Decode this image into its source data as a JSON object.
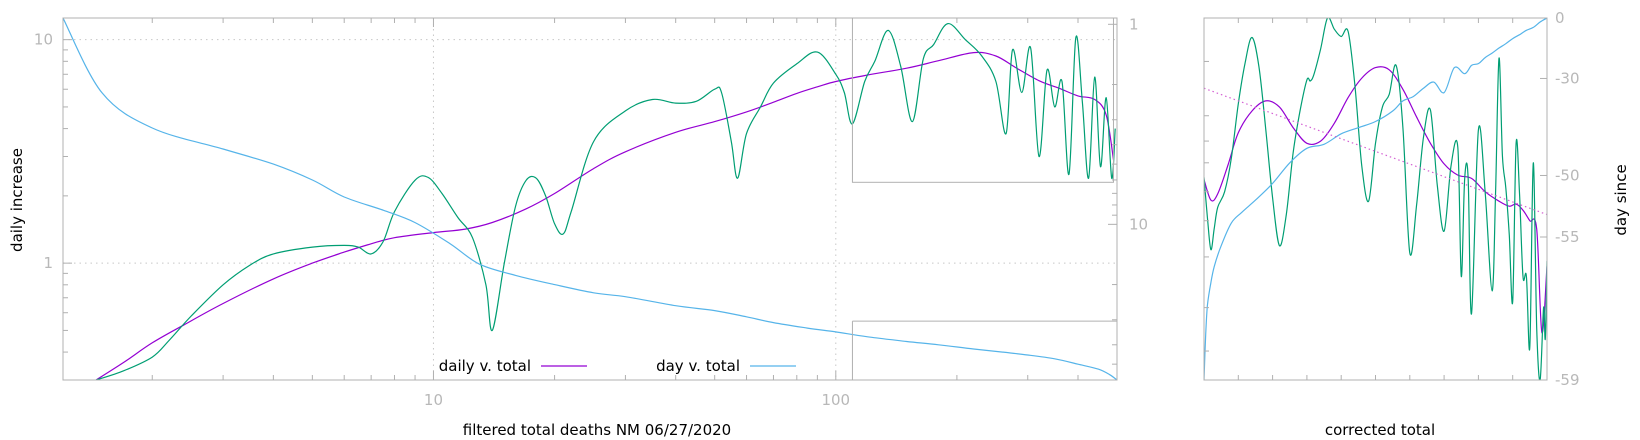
{
  "chart_data": [
    {
      "type": "line",
      "xlabel": "filtered total deaths NM 06/27/2020",
      "ylabel": "daily increase",
      "y2label": "day since",
      "x_scale": "log",
      "y_scale": "log",
      "xlim": [
        1.2,
        500
      ],
      "ylim": [
        0.3,
        12.5
      ],
      "y2lim": [
        60,
        0.93
      ],
      "x_tick_labels": [
        {
          "value": 10,
          "label": "10"
        },
        {
          "value": 100,
          "label": "100"
        }
      ],
      "y_tick_labels": [
        {
          "value": 1,
          "label": "1"
        },
        {
          "value": 10,
          "label": "10"
        }
      ],
      "y2_tick_labels": [
        {
          "value": 1,
          "label": "1"
        },
        {
          "value": 10,
          "label": "10"
        }
      ],
      "grid": true,
      "legend": {
        "placement": "bottom-center",
        "entries": [
          "daily v. total",
          "day v. total"
        ]
      },
      "series": [
        {
          "name": "daily v. total",
          "color": "#9400d3",
          "axis": "y",
          "x": [
            1.45,
            1.7,
            2.0,
            2.4,
            3.0,
            4.0,
            5.0,
            6.0,
            7.0,
            8.0,
            10.0,
            12.0,
            14.0,
            17.0,
            20.0,
            25.0,
            30.0,
            40.0,
            50.0,
            60.0,
            70.0,
            80.0,
            90.0,
            100.0,
            120.0,
            150.0,
            180.0,
            220.0,
            250.0,
            280.0,
            320.0,
            360.0,
            400.0,
            440.0,
            470.0,
            490.0
          ],
          "y": [
            0.3,
            0.36,
            0.44,
            0.53,
            0.66,
            0.85,
            1.0,
            1.12,
            1.22,
            1.3,
            1.37,
            1.42,
            1.52,
            1.75,
            2.05,
            2.65,
            3.15,
            3.85,
            4.3,
            4.75,
            5.25,
            5.75,
            6.15,
            6.5,
            6.95,
            7.45,
            8.05,
            8.75,
            8.45,
            7.5,
            6.55,
            6.05,
            5.6,
            5.4,
            4.6,
            2.9
          ]
        },
        {
          "name": "",
          "color": "#009e73",
          "axis": "y",
          "x": [
            1.45,
            1.7,
            2.0,
            2.2,
            2.5,
            3.0,
            3.5,
            4.0,
            5.0,
            6.0,
            6.5,
            7.0,
            7.5,
            8.0,
            9.0,
            9.7,
            10.5,
            11.5,
            12.5,
            13.5,
            14.0,
            15.0,
            16.0,
            17.0,
            18.0,
            19.0,
            20.0,
            21.0,
            22.0,
            25.0,
            30.0,
            35.0,
            40.0,
            45.0,
            50.0,
            52.0,
            55.0,
            57.0,
            60.0,
            65.0,
            70.0,
            80.0,
            90.0,
            100.0,
            105.0,
            110.0,
            118.0,
            125.0,
            135.0,
            145.0,
            155.0,
            165.0,
            175.0,
            190.0,
            210.0,
            230.0,
            250.0,
            265.0,
            275.0,
            290.0,
            305.0,
            320.0,
            335.0,
            350.0,
            365.0,
            380.0,
            395.0,
            410.0,
            425.0,
            440.0,
            455.0,
            470.0,
            485.0,
            495.0
          ],
          "y": [
            0.3,
            0.33,
            0.38,
            0.45,
            0.58,
            0.8,
            0.98,
            1.1,
            1.18,
            1.2,
            1.18,
            1.1,
            1.25,
            1.7,
            2.35,
            2.42,
            2.05,
            1.6,
            1.3,
            0.8,
            0.5,
            1.0,
            1.8,
            2.35,
            2.4,
            2.0,
            1.5,
            1.35,
            1.7,
            3.5,
            4.8,
            5.4,
            5.2,
            5.3,
            6.0,
            5.8,
            3.5,
            2.4,
            3.8,
            5.0,
            6.4,
            7.8,
            8.8,
            7.0,
            5.8,
            4.2,
            6.5,
            8.0,
            11.0,
            7.6,
            4.3,
            8.2,
            9.5,
            11.8,
            10.0,
            8.5,
            6.5,
            3.8,
            9.0,
            5.8,
            9.2,
            3.0,
            7.3,
            5.0,
            6.5,
            2.5,
            10.2,
            5.3,
            2.4,
            6.8,
            2.7,
            5.5,
            2.4,
            4.0
          ]
        },
        {
          "name": "day v. total",
          "color": "#56b4e9",
          "axis": "y2",
          "x": [
            1.2,
            1.5,
            2.0,
            3.0,
            4.0,
            5.0,
            6.0,
            7.5,
            9.0,
            11.0,
            13.0,
            16.0,
            20.0,
            25.0,
            30.0,
            40.0,
            50.0,
            60.0,
            70.0,
            85.0,
            100.0,
            120.0,
            150.0,
            180.0,
            220.0,
            260.0,
            300.0,
            350.0,
            400.0,
            450.0,
            480.0,
            500.0
          ],
          "y": [
            0.93,
            2.2,
            3.3,
            4.2,
            5.0,
            6.0,
            7.3,
            8.5,
            9.8,
            12.5,
            15.8,
            18.0,
            20.0,
            22.0,
            23.0,
            25.5,
            27.0,
            29.0,
            31.0,
            33.0,
            34.5,
            36.5,
            38.5,
            40.0,
            42.0,
            43.5,
            45.0,
            47.0,
            50.0,
            53.0,
            56.5,
            60.0
          ]
        }
      ],
      "inset_box": {
        "x": [
          110,
          490
        ],
        "y": [
          2.3,
          12.5
        ]
      },
      "horizontal_rule": {
        "y": 0.55,
        "x": [
          110,
          500
        ]
      }
    },
    {
      "type": "line",
      "xlabel": "corrected total",
      "ylabel": "",
      "y2label": "day since",
      "xlim": [
        0,
        100
      ],
      "ylim": [
        0,
        100
      ],
      "y2lim": [
        -59,
        0
      ],
      "y2_tick_labels": [
        {
          "value": 0,
          "label": "0"
        },
        {
          "value": -30,
          "label": "-30"
        },
        {
          "value": -50,
          "label": "-50"
        },
        {
          "value": -55,
          "label": "-55"
        },
        {
          "value": -59,
          "label": "-59"
        }
      ],
      "series": [
        {
          "name": "",
          "color": "#9400d3",
          "x": [
            0,
            2,
            4,
            7,
            10,
            14,
            18,
            22,
            26,
            30,
            34,
            38,
            42,
            46,
            50,
            54,
            58,
            62,
            66,
            70,
            74,
            78,
            82,
            86,
            89,
            91,
            93,
            95,
            97,
            98.5,
            100
          ],
          "y": [
            44.6,
            50.3,
            48.6,
            40.6,
            31.7,
            25.7,
            22.9,
            24.6,
            30.3,
            34.6,
            34.0,
            29.1,
            22.0,
            16.6,
            13.7,
            14.3,
            19.7,
            27.4,
            34.6,
            40.3,
            43.4,
            44.3,
            48.0,
            50.6,
            52.0,
            51.4,
            53.1,
            56.0,
            58.3,
            86.9,
            68.6
          ]
        },
        {
          "name": "",
          "color": "#009e73",
          "x": [
            0,
            1,
            2,
            3,
            4,
            6,
            8,
            10,
            12,
            14,
            16,
            18,
            20,
            22,
            24,
            26,
            28,
            30,
            31,
            32,
            34,
            36,
            38,
            40,
            42,
            44,
            46,
            48,
            50,
            52,
            54,
            56,
            58,
            60,
            62,
            64,
            66,
            68,
            70,
            72,
            74,
            75,
            76,
            77,
            78,
            80,
            82,
            84,
            85,
            86,
            87,
            88,
            89,
            90,
            91,
            92,
            93,
            94,
            95,
            96,
            97,
            98,
            99,
            99.5,
            100
          ],
          "y": [
            44.0,
            55.1,
            64.0,
            58.0,
            52.3,
            48.0,
            38.6,
            23.7,
            12.3,
            5.4,
            13.4,
            30.6,
            49.7,
            62.9,
            54.3,
            37.1,
            25.7,
            17.1,
            17.4,
            15.7,
            8.6,
            0.0,
            3.1,
            5.1,
            3.7,
            18.6,
            40.9,
            50.6,
            34.6,
            24.6,
            21.1,
            13.1,
            30.3,
            64.9,
            51.4,
            32.9,
            25.4,
            46.0,
            58.9,
            40.9,
            35.7,
            71.4,
            44.3,
            44.0,
            81.7,
            30.9,
            48.6,
            75.4,
            48.9,
            11.1,
            38.0,
            46.9,
            60.0,
            78.3,
            34.6,
            48.9,
            71.4,
            71.4,
            90.9,
            40.0,
            85.7,
            100.0,
            80.0,
            88.6,
            67.1
          ]
        },
        {
          "name": "",
          "color": "#56b4e9",
          "x": [
            0,
            0.5,
            1,
            2,
            3,
            5,
            8,
            11,
            15,
            20,
            25,
            30,
            35,
            40,
            45,
            50,
            55,
            58,
            61,
            64,
            67,
            70,
            73,
            76,
            78,
            80,
            82,
            84,
            86,
            88,
            90,
            92,
            94,
            96,
            98,
            100
          ],
          "y": [
            100.0,
            87.4,
            79.4,
            73.1,
            68.6,
            62.9,
            56.6,
            53.7,
            50.3,
            45.7,
            40.0,
            36.0,
            34.9,
            32.0,
            30.3,
            28.6,
            25.7,
            22.9,
            21.7,
            19.4,
            17.7,
            20.6,
            13.7,
            15.4,
            13.1,
            12.6,
            10.9,
            9.7,
            8.3,
            7.1,
            5.7,
            4.6,
            3.4,
            2.6,
            1.1,
            0.0
          ]
        },
        {
          "name": "",
          "color": "#d35fd3",
          "dashed": true,
          "x": [
            0,
            100
          ],
          "y": [
            19.4,
            54.3
          ]
        }
      ]
    }
  ],
  "legend_sample_colors": {
    "daily": "#9400d3",
    "day": "#56b4e9"
  }
}
